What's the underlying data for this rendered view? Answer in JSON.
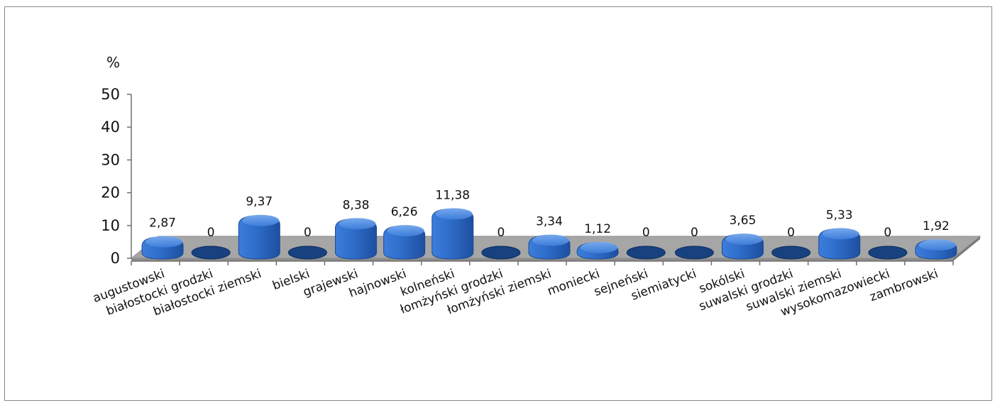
{
  "chart_data": {
    "type": "bar",
    "unit_label": "%",
    "categories": [
      "augustowski",
      "białostocki grodzki",
      "białostocki ziemski",
      "bielski",
      "grajewski",
      "hajnowski",
      "kolneński",
      "łomżyński grodzki",
      "łomżyński ziemski",
      "moniecki",
      "sejneński",
      "siemiatycki",
      "sokólski",
      "suwalski grodzki",
      "suwalski ziemski",
      "wysokomazowiecki",
      "zambrowski"
    ],
    "values": [
      2.87,
      0,
      9.37,
      0,
      8.38,
      6.26,
      11.38,
      0,
      3.34,
      1.12,
      0,
      0,
      3.65,
      0,
      5.33,
      0,
      1.92
    ],
    "value_labels": [
      "2,87",
      "0",
      "9,37",
      "0",
      "8,38",
      "6,26",
      "11,38",
      "0",
      "3,34",
      "1,12",
      "0",
      "0",
      "3,65",
      "0",
      "5,33",
      "0",
      "1,92"
    ],
    "y_ticks": [
      "0",
      "10",
      "20",
      "30",
      "40",
      "50"
    ],
    "ylim": [
      0,
      50
    ],
    "grid": false,
    "legend": "none",
    "colors": {
      "bar": "#2f6fd0",
      "bar_dark": "#17417f",
      "bar_light": "#5d98ea",
      "floor": "#a6a6a6"
    }
  }
}
